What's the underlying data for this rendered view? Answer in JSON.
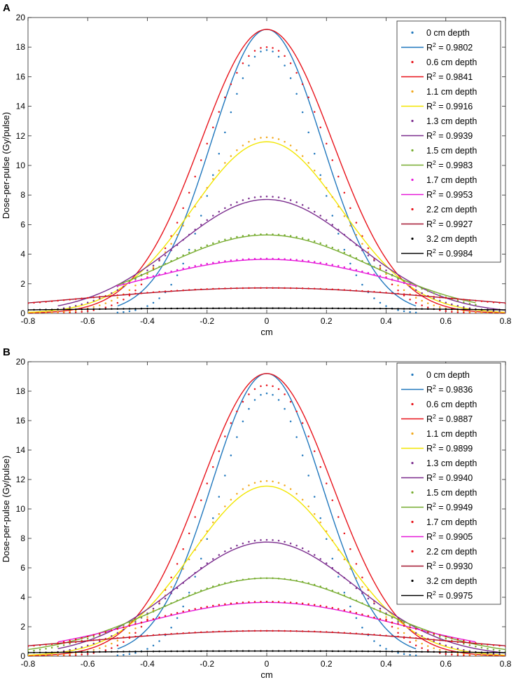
{
  "colors": {
    "blue": "#1f77bd",
    "red": "#e8141c",
    "orange": "#f2a81c",
    "yellow": "#f2e600",
    "purple": "#7b2d8e",
    "green": "#77ac30",
    "magenta": "#e619d8",
    "darkred": "#a2142f",
    "black": "#000000"
  },
  "chart_data": [
    {
      "panel": "A",
      "type": "scatter",
      "xlabel": "cm",
      "ylabel": "Dose-per-pulse (Gy/pulse)",
      "xlim": [
        -0.8,
        0.8
      ],
      "ylim": [
        0,
        20
      ],
      "xticks": [
        "-0.8",
        "-0.6",
        "-0.4",
        "-0.2",
        "0",
        "0.2",
        "0.4",
        "0.6",
        "0.8"
      ],
      "yticks": [
        "0",
        "2",
        "4",
        "6",
        "8",
        "10",
        "12",
        "14",
        "16",
        "18",
        "20"
      ],
      "legend_position": "top-right",
      "series": [
        {
          "name": "0 cm depth",
          "fit_label": "R² = 0.9802",
          "r2_value": "0.9802",
          "dot_color": "blue",
          "line_color": "blue",
          "peak": 17.8,
          "sigma": 0.16,
          "xrange": [
            -0.5,
            0.5
          ],
          "fit_amp": 19.2,
          "fit_sigma": 0.185
        },
        {
          "name": "0.6 cm depth",
          "fit_label": "R² = 0.9841",
          "r2_value": "0.9841",
          "dot_color": "red",
          "line_color": "red",
          "peak": 18.0,
          "sigma": 0.21,
          "xrange": [
            -0.8,
            0.8
          ],
          "fit_amp": 19.2,
          "fit_sigma": 0.22
        },
        {
          "name": "1.1 cm depth",
          "fit_label": "R² = 0.9916",
          "r2_value": "0.9916",
          "dot_color": "orange",
          "line_color": "yellow",
          "peak": 11.9,
          "sigma": 0.24,
          "xrange": [
            -0.8,
            0.8
          ],
          "fit_amp": 11.6,
          "fit_sigma": 0.25
        },
        {
          "name": "1.3 cm depth",
          "fit_label": "R² = 0.9939",
          "r2_value": "0.9939",
          "dot_color": "purple",
          "line_color": "purple",
          "peak": 7.9,
          "sigma": 0.29,
          "xrange": [
            -0.7,
            0.8
          ],
          "fit_amp": 7.7,
          "fit_sigma": 0.3
        },
        {
          "name": "1.5 cm depth",
          "fit_label": "R² = 0.9983",
          "r2_value": "0.9983",
          "dot_color": "green",
          "line_color": "green",
          "peak": 5.35,
          "sigma": 0.35,
          "xrange": [
            -0.5,
            0.7
          ],
          "fit_amp": 5.3,
          "fit_sigma": 0.35
        },
        {
          "name": "1.7 cm depth",
          "fit_label": "R² = 0.9953",
          "r2_value": "0.9953",
          "dot_color": "magenta",
          "line_color": "magenta",
          "peak": 3.7,
          "sigma": 0.43,
          "xrange": [
            -0.5,
            0.5
          ],
          "fit_amp": 3.65,
          "fit_sigma": 0.43
        },
        {
          "name": "2.2 cm depth",
          "fit_label": "R² = 0.9927",
          "r2_value": "0.9927",
          "dot_color": "red",
          "line_color": "darkred",
          "peak": 1.72,
          "sigma": 0.6,
          "xrange": [
            -0.8,
            0.8
          ],
          "fit_amp": 1.72,
          "fit_sigma": 0.6
        },
        {
          "name": "3.2 cm depth",
          "fit_label": "R² = 0.9984",
          "r2_value": "0.9984",
          "dot_color": "black",
          "line_color": "black",
          "peak": 0.35,
          "sigma": 0.9,
          "xrange": [
            -0.8,
            0.8
          ],
          "fit_amp": 0.35,
          "fit_sigma": 0.9
        }
      ]
    },
    {
      "panel": "B",
      "type": "scatter",
      "xlabel": "cm",
      "ylabel": "Dose-per-pulse (Gy/pulse)",
      "xlim": [
        -0.8,
        0.8
      ],
      "ylim": [
        0,
        20
      ],
      "xticks": [
        "-0.8",
        "-0.6",
        "-0.4",
        "-0.2",
        "0",
        "0.2",
        "0.4",
        "0.6",
        "0.8"
      ],
      "yticks": [
        "0",
        "2",
        "4",
        "6",
        "8",
        "10",
        "12",
        "14",
        "16",
        "18",
        "20"
      ],
      "legend_position": "top-right",
      "series": [
        {
          "name": "0 cm depth",
          "fit_label": "R² = 0.9836",
          "r2_value": "0.9836",
          "dot_color": "blue",
          "line_color": "blue",
          "peak": 17.85,
          "sigma": 0.16,
          "xrange": [
            -0.5,
            0.5
          ],
          "fit_amp": 19.2,
          "fit_sigma": 0.185
        },
        {
          "name": "0.6 cm depth",
          "fit_label": "R² = 0.9887",
          "r2_value": "0.9887",
          "dot_color": "red",
          "line_color": "red",
          "peak": 18.4,
          "sigma": 0.21,
          "xrange": [
            -0.8,
            0.8
          ],
          "fit_amp": 19.2,
          "fit_sigma": 0.22
        },
        {
          "name": "1.1 cm depth",
          "fit_label": "R² = 0.9899",
          "r2_value": "0.9899",
          "dot_color": "orange",
          "line_color": "yellow",
          "peak": 11.9,
          "sigma": 0.24,
          "xrange": [
            -0.8,
            0.8
          ],
          "fit_amp": 11.55,
          "fit_sigma": 0.25
        },
        {
          "name": "1.3 cm depth",
          "fit_label": "R² = 0.9940",
          "r2_value": "0.9940",
          "dot_color": "purple",
          "line_color": "purple",
          "peak": 7.9,
          "sigma": 0.29,
          "xrange": [
            -0.7,
            0.8
          ],
          "fit_amp": 7.75,
          "fit_sigma": 0.3
        },
        {
          "name": "1.5 cm depth",
          "fit_label": "R² = 0.9949",
          "r2_value": "0.9949",
          "dot_color": "green",
          "line_color": "green",
          "peak": 5.3,
          "sigma": 0.36,
          "xrange": [
            -0.8,
            0.8
          ],
          "fit_amp": 5.3,
          "fit_sigma": 0.36
        },
        {
          "name": "1.7 cm depth",
          "fit_label": "R² = 0.9905",
          "r2_value": "0.9905",
          "dot_color": "red",
          "line_color": "magenta",
          "peak": 3.7,
          "sigma": 0.43,
          "xrange": [
            -0.7,
            0.7
          ],
          "fit_amp": 3.65,
          "fit_sigma": 0.43
        },
        {
          "name": "2.2 cm depth",
          "fit_label": "R² = 0.9930",
          "r2_value": "0.9930",
          "dot_color": "red",
          "line_color": "darkred",
          "peak": 1.72,
          "sigma": 0.6,
          "xrange": [
            -0.8,
            0.8
          ],
          "fit_amp": 1.72,
          "fit_sigma": 0.6
        },
        {
          "name": "3.2 cm depth",
          "fit_label": "R² = 0.9975",
          "r2_value": "0.9975",
          "dot_color": "black",
          "line_color": "black",
          "peak": 0.35,
          "sigma": 0.9,
          "xrange": [
            -0.8,
            0.8
          ],
          "fit_amp": 0.35,
          "fit_sigma": 0.9
        }
      ]
    }
  ]
}
